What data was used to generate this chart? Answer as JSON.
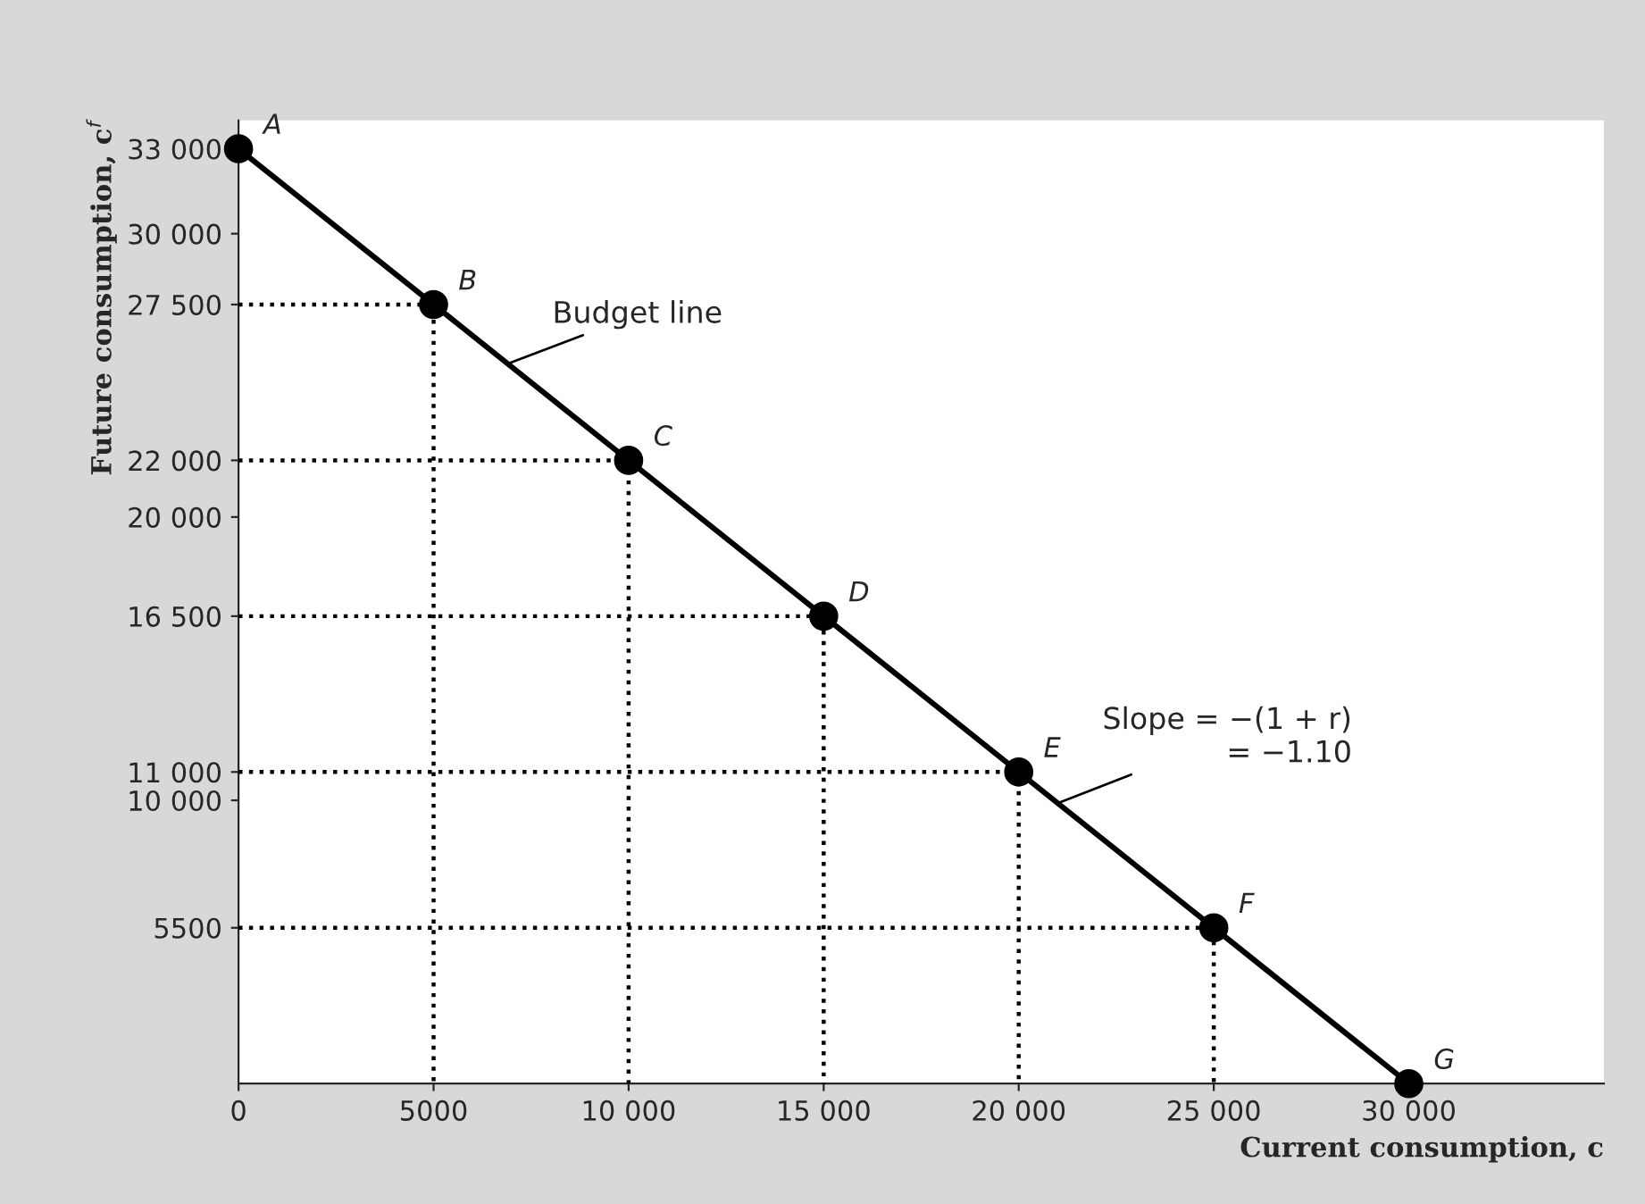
{
  "chart_data": {
    "type": "line",
    "xlabel": "Current consumption, c",
    "ylabel": "Future consumption, c$^{f}$",
    "series": [
      {
        "color": "#000000",
        "marker": "circle",
        "line_style": "solid",
        "x": [
          0,
          5000,
          10000,
          15000,
          20000,
          25000,
          30000
        ],
        "values": [
          33000,
          27500,
          22000,
          16500,
          11000,
          5500,
          0
        ]
      },
      {
        "color": "#000000",
        "marker": "none",
        "line_style": "dotted",
        "x": [
          0,
          5000,
          5000
        ],
        "values": [
          27500,
          27500,
          0
        ]
      },
      {
        "color": "#000000",
        "marker": "none",
        "line_style": "dotted",
        "x": [
          0,
          10000,
          10000
        ],
        "values": [
          22000,
          22000,
          0
        ]
      },
      {
        "color": "#000000",
        "marker": "none",
        "line_style": "dotted",
        "x": [
          0,
          15000,
          15000
        ],
        "values": [
          16500,
          16500,
          0
        ]
      },
      {
        "color": "#000000",
        "marker": "none",
        "line_style": "dotted",
        "x": [
          0,
          20000,
          20000
        ],
        "values": [
          11000,
          11000,
          0
        ]
      },
      {
        "color": "#000000",
        "marker": "none",
        "line_style": "dotted",
        "x": [
          0,
          25000,
          25000
        ],
        "values": [
          5500,
          5500,
          0
        ]
      }
    ],
    "xlim": [
      0,
      35000
    ],
    "ylim": [
      0,
      34000
    ],
    "xticks": [
      0,
      5000,
      {
        "value": 10000,
        "label": "10 000"
      },
      {
        "value": 15000,
        "label": "15 000"
      },
      {
        "value": 20000,
        "label": "20 000"
      },
      {
        "value": 25000,
        "label": "25 000"
      },
      {
        "value": 30000,
        "label": "30 000"
      }
    ],
    "yticks": [
      5500,
      {
        "value": 10000,
        "label": "10 000"
      },
      {
        "value": 11000,
        "label": "11 000"
      },
      {
        "value": 16500,
        "label": "16 500"
      },
      {
        "value": 20000,
        "label": "20 000"
      },
      {
        "value": 22000,
        "label": "22 000"
      },
      {
        "value": 27500,
        "label": "27 500"
      },
      {
        "value": 30000,
        "label": "30 000"
      },
      {
        "value": 33000,
        "label": "33 000"
      }
    ],
    "annotations": [
      {
        "text": "A",
        "x": 0,
        "y": 33000
      },
      {
        "text": "B",
        "x": 5000,
        "y": 27500
      },
      {
        "text": "C",
        "x": 10000,
        "y": 22000
      },
      {
        "text": "D",
        "x": 15000,
        "y": 16500
      },
      {
        "text": "E",
        "x": 20000,
        "y": 11000
      },
      {
        "text": "F",
        "x": 25000,
        "y": 5500
      },
      {
        "text": "G",
        "x": 30000,
        "y": 0
      },
      {
        "text": "Budget line",
        "x": 6900,
        "y": 25410
      },
      {
        "text": "Slope = −(1 + r)\n= −1.10",
        "x": 21000,
        "y": 9900
      }
    ],
    "grid": false,
    "legend": false
  }
}
